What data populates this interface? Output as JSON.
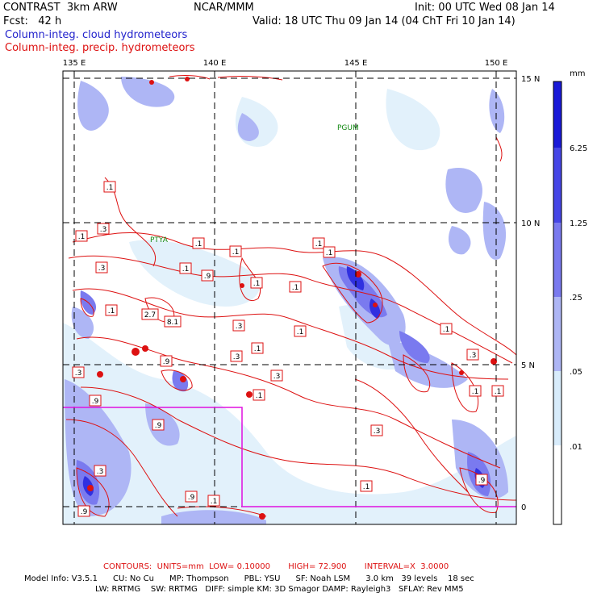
{
  "header": {
    "model": "CONTRAST  3km ARW",
    "center": "NCAR/MMM",
    "init": "Init: 00 UTC Wed 08 Jan 14",
    "fcst": "Fcst:   42 h",
    "valid": "Valid: 18 UTC Thu 09 Jan 14 (04 ChT Fri 10 Jan 14)",
    "field1": "Column-integ. cloud hydrometeors",
    "field2": "Column-integ. precip. hydrometeors"
  },
  "map": {
    "lon_labels": [
      "135 E",
      "140 E",
      "145 E",
      "150 E"
    ],
    "lat_labels": [
      "15 N",
      "10 N",
      "5 N",
      "0"
    ],
    "stations": [
      "PGUM",
      "PTYA"
    ],
    "contour_labels": [
      ".1",
      ".3",
      ".1",
      ".1",
      ".3",
      ".1",
      ".9",
      ".1",
      "2.7",
      "8.1",
      ".9",
      ".3",
      ".3",
      ".1",
      ".3",
      ".1",
      ".3",
      ".1",
      ".1",
      ".9",
      ".9",
      ".1",
      ".3",
      ".1",
      ".1",
      ".3",
      ".9",
      ".1",
      ".1",
      ".9",
      ".1",
      ".9",
      ".3",
      ".1",
      ".1",
      ".1"
    ]
  },
  "legend": {
    "unit": "mm",
    "levels": [
      "6.25",
      "1.25",
      ".25",
      ".05",
      ".01"
    ],
    "colors": [
      "#1a1ad8",
      "#4646e6",
      "#7a7aef",
      "#aeb6f5",
      "#d8ecfb",
      "#ffffff"
    ]
  },
  "footer": {
    "contours_line": "CONTOURS:  UNITS=mm  LOW= 0.10000       HIGH= 72.900       INTERVAL=X  3.0000",
    "model_line": "Model Info: V3.5.1      CU: No Cu      MP: Thompson      PBL: YSU      SF: Noah LSM      3.0 km   39 levels    18 sec",
    "phys_line": "LW: RRTMG    SW: RRTMG   DIFF: simple KM: 3D Smagor DAMP: Rayleigh3   SFLAY: Rev MM5"
  }
}
